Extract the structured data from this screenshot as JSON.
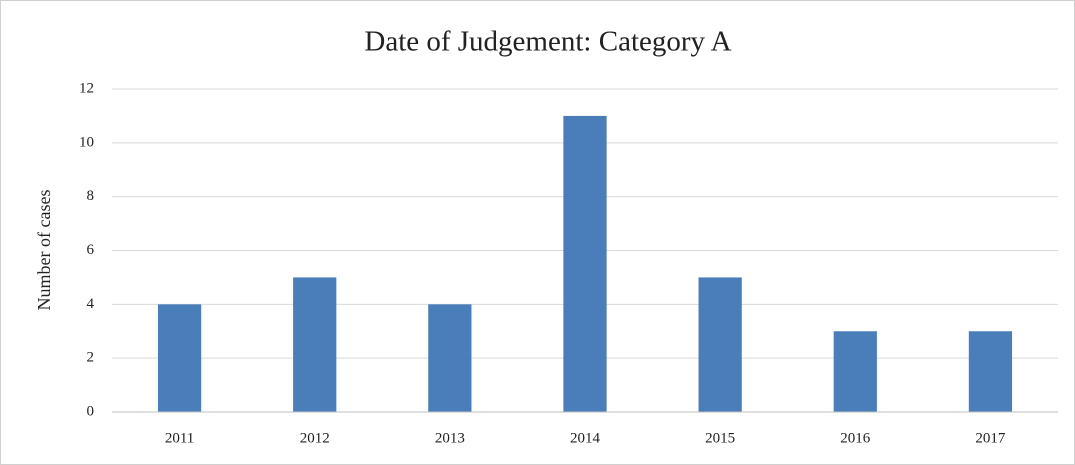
{
  "chart_data": {
    "type": "bar",
    "title": "Date of Judgement: Category A",
    "y_label": "Number of cases",
    "categories": [
      "2011",
      "2012",
      "2013",
      "2014",
      "2015",
      "2016",
      "2017"
    ],
    "values": [
      4,
      5,
      4,
      11,
      5,
      3,
      3
    ],
    "color": "#4a7ebb",
    "ylim": [
      0,
      12
    ],
    "yticks": [
      0,
      2,
      4,
      6,
      8,
      10,
      12
    ],
    "grid": true
  }
}
